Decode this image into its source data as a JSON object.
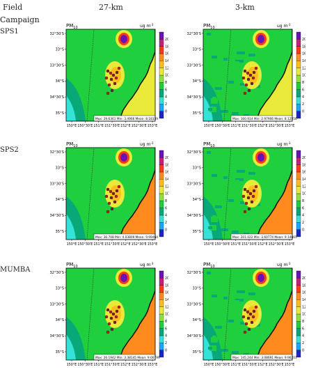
{
  "header": {
    "left_line1": "Field",
    "left_line2": "Campaign",
    "col_27": "27-km",
    "col_3": "3-km"
  },
  "rows": [
    "SPS1",
    "SPS2",
    "MUMBA"
  ],
  "panel": {
    "title": "PM",
    "title_sub": "10",
    "units": "ug m",
    "units_sup": "-3",
    "lat_ticks": [
      "32°30'S",
      "33°S",
      "33°30'S",
      "34°S",
      "34°30'S",
      "35°S"
    ],
    "lon_ticks": [
      "150°E",
      "150°30'E",
      "151°E",
      "151°30'E",
      "152°E",
      "152°30'E",
      "153°E"
    ],
    "cbar_ticks": [
      "20",
      "18",
      "16",
      "14",
      "12",
      "10",
      "8",
      "6",
      "4",
      "2",
      "0"
    ]
  },
  "stats": {
    "SPS1_27": "Max: 29.6361  Min: 3.4966  Mean: 8.18339",
    "SPS1_3": "Max: 160.914  Min: 2.97906  Mean: 8.12556",
    "SPS2_27": "Max: 36.708  Min: 4.03809  Mean: 9.99464",
    "SPS2_3": "Max: 201.022  Min: 3.60774  Mean: 9.14665",
    "MUMBA_27": "Max: 26.1942  Min: 3.38145  Mean: 9.66799",
    "MUMBA_3": "Max: 145.244  Min: 3.08691  Mean: 9.96201"
  },
  "colors": {
    "cbar": [
      "#1a25c8",
      "#19a8ff",
      "#35e2d8",
      "#08a878",
      "#1fcf3e",
      "#8fe23a",
      "#e9e93a",
      "#ffbe1e",
      "#ff8a1e",
      "#ff3b16",
      "#c81e7a",
      "#6a12b4"
    ]
  }
}
